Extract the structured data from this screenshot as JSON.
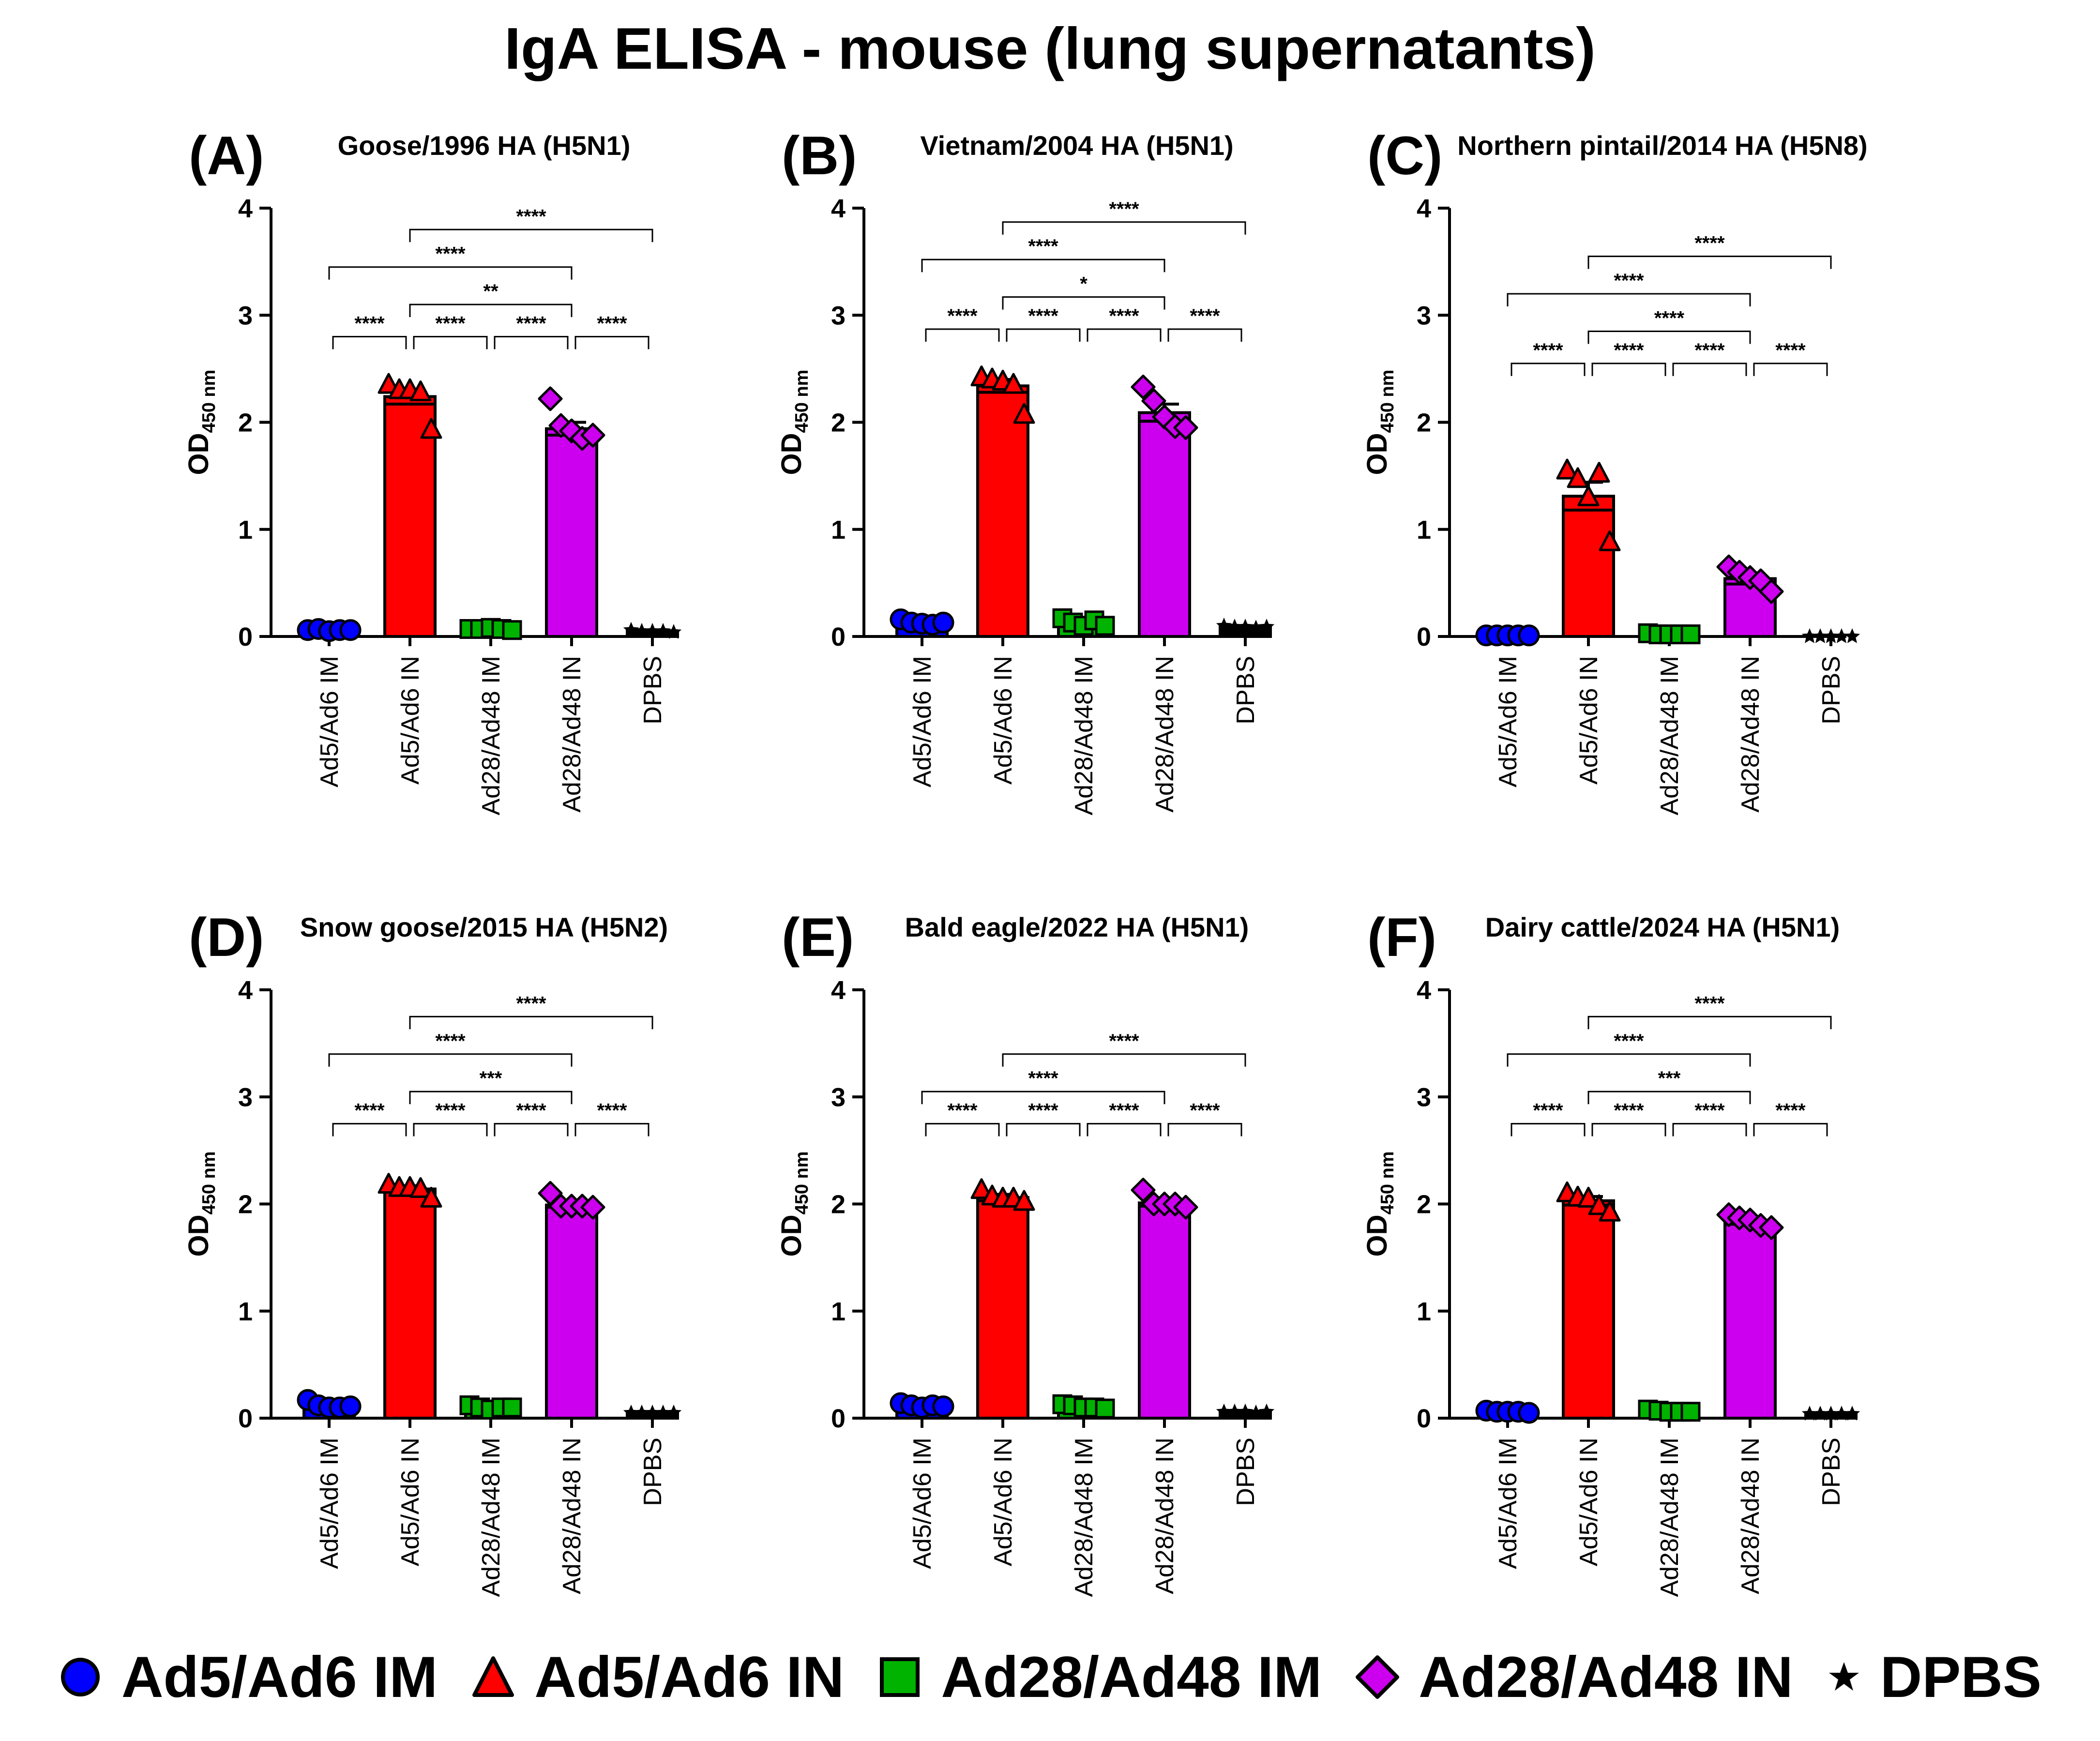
{
  "title": "IgA ELISA - mouse (lung supernatants)",
  "legend": [
    {
      "label": "Ad5/Ad6 IM",
      "marker": "circle",
      "color": "#0000ff"
    },
    {
      "label": "Ad5/Ad6 IN",
      "marker": "triangle",
      "color": "#ff0000"
    },
    {
      "label": "Ad28/Ad48 IM",
      "marker": "square",
      "color": "#00b300"
    },
    {
      "label": "Ad28/Ad48 IN",
      "marker": "diamond",
      "color": "#cc00ee"
    },
    {
      "label": "DPBS",
      "marker": "star",
      "color": "#000000"
    }
  ],
  "chart_data": [
    {
      "type": "bar",
      "panel": "(A)",
      "title": "Goose/1996 HA (H5N1)",
      "ylabel": "OD",
      "ylabel_sub": "450 nm",
      "ylim": [
        0,
        4
      ],
      "yticks": [
        "0",
        "1",
        "2",
        "3",
        "4"
      ],
      "categories": [
        "Ad5/Ad6 IM",
        "Ad5/Ad6 IN",
        "Ad28/Ad48 IM",
        "Ad28/Ad48 IN",
        "DPBS"
      ],
      "values": [
        0.06,
        2.24,
        0.07,
        1.94,
        0.05
      ],
      "sem": [
        0.01,
        0.07,
        0.01,
        0.06,
        0.01
      ],
      "points": [
        [
          0.06,
          0.07,
          0.05,
          0.06,
          0.06
        ],
        [
          2.35,
          2.3,
          2.3,
          2.28,
          1.93
        ],
        [
          0.07,
          0.07,
          0.08,
          0.07,
          0.06
        ],
        [
          2.22,
          1.97,
          1.92,
          1.85,
          1.88
        ],
        [
          0.06,
          0.05,
          0.05,
          0.05,
          0.04
        ]
      ],
      "comparisons": [
        {
          "from": 0,
          "to": 1,
          "label": "****"
        },
        {
          "from": 1,
          "to": 2,
          "label": "****"
        },
        {
          "from": 2,
          "to": 3,
          "label": "****"
        },
        {
          "from": 3,
          "to": 4,
          "label": "****"
        },
        {
          "from": 1,
          "to": 3,
          "label": "**"
        },
        {
          "from": 0,
          "to": 3,
          "label": "****"
        },
        {
          "from": 1,
          "to": 4,
          "label": "****"
        }
      ]
    },
    {
      "type": "bar",
      "panel": "(B)",
      "title": "Vietnam/2004 HA (H5N1)",
      "ylabel": "OD",
      "ylabel_sub": "450 nm",
      "ylim": [
        0,
        4
      ],
      "yticks": [
        "0",
        "1",
        "2",
        "3",
        "4"
      ],
      "categories": [
        "Ad5/Ad6 IM",
        "Ad5/Ad6 IN",
        "Ad28/Ad48 IM",
        "Ad28/Ad48 IN",
        "DPBS"
      ],
      "values": [
        0.13,
        2.34,
        0.13,
        2.09,
        0.09
      ],
      "sem": [
        0.02,
        0.06,
        0.03,
        0.08,
        0.01
      ],
      "points": [
        [
          0.16,
          0.13,
          0.12,
          0.11,
          0.13
        ],
        [
          2.42,
          2.4,
          2.38,
          2.35,
          2.07
        ],
        [
          0.17,
          0.13,
          0.1,
          0.15,
          0.1
        ],
        [
          2.33,
          2.2,
          2.05,
          1.96,
          1.95
        ],
        [
          0.1,
          0.09,
          0.09,
          0.08,
          0.09
        ]
      ],
      "comparisons": [
        {
          "from": 0,
          "to": 1,
          "label": "****"
        },
        {
          "from": 1,
          "to": 2,
          "label": "****"
        },
        {
          "from": 2,
          "to": 3,
          "label": "****"
        },
        {
          "from": 3,
          "to": 4,
          "label": "****"
        },
        {
          "from": 1,
          "to": 3,
          "label": "*"
        },
        {
          "from": 0,
          "to": 3,
          "label": "****"
        },
        {
          "from": 1,
          "to": 4,
          "label": "****"
        }
      ]
    },
    {
      "type": "bar",
      "panel": "(C)",
      "title": "Northern pintail/2014 HA (H5N8)",
      "ylabel": "OD",
      "ylabel_sub": "450 nm",
      "ylim": [
        0,
        4
      ],
      "yticks": [
        "0",
        "1",
        "2",
        "3",
        "4"
      ],
      "categories": [
        "Ad5/Ad6 IM",
        "Ad5/Ad6 IN",
        "Ad28/Ad48 IM",
        "Ad28/Ad48 IN",
        "DPBS"
      ],
      "values": [
        0.01,
        1.31,
        0.02,
        0.54,
        0.0
      ],
      "sem": [
        0.005,
        0.13,
        0.01,
        0.05,
        0.003
      ],
      "points": [
        [
          0.01,
          0.01,
          0.01,
          0.01,
          0.01
        ],
        [
          1.55,
          1.47,
          1.3,
          1.52,
          0.88
        ],
        [
          0.03,
          0.02,
          0.02,
          0.02,
          0.02
        ],
        [
          0.65,
          0.6,
          0.55,
          0.52,
          0.42
        ],
        [
          0.0,
          0.0,
          0.0,
          0.0,
          0.0
        ]
      ],
      "comparisons": [
        {
          "from": 0,
          "to": 1,
          "label": "****"
        },
        {
          "from": 1,
          "to": 2,
          "label": "****"
        },
        {
          "from": 2,
          "to": 3,
          "label": "****"
        },
        {
          "from": 3,
          "to": 4,
          "label": "****"
        },
        {
          "from": 1,
          "to": 3,
          "label": "****"
        },
        {
          "from": 0,
          "to": 3,
          "label": "****"
        },
        {
          "from": 1,
          "to": 4,
          "label": "****"
        }
      ]
    },
    {
      "type": "bar",
      "panel": "(D)",
      "title": "Snow goose/2015 HA (H5N2)",
      "ylabel": "OD",
      "ylabel_sub": "450 nm",
      "ylim": [
        0,
        4
      ],
      "yticks": [
        "0",
        "1",
        "2",
        "3",
        "4"
      ],
      "categories": [
        "Ad5/Ad6 IM",
        "Ad5/Ad6 IN",
        "Ad28/Ad48 IM",
        "Ad28/Ad48 IN",
        "DPBS"
      ],
      "values": [
        0.12,
        2.14,
        0.1,
        1.99,
        0.05
      ],
      "sem": [
        0.02,
        0.03,
        0.02,
        0.02,
        0.005
      ],
      "points": [
        [
          0.17,
          0.12,
          0.1,
          0.1,
          0.11
        ],
        [
          2.18,
          2.15,
          2.15,
          2.14,
          2.05
        ],
        [
          0.12,
          0.1,
          0.08,
          0.1,
          0.1
        ],
        [
          2.1,
          1.98,
          1.98,
          1.98,
          1.97
        ],
        [
          0.05,
          0.05,
          0.05,
          0.05,
          0.05
        ]
      ],
      "comparisons": [
        {
          "from": 0,
          "to": 1,
          "label": "****"
        },
        {
          "from": 1,
          "to": 2,
          "label": "****"
        },
        {
          "from": 2,
          "to": 3,
          "label": "****"
        },
        {
          "from": 3,
          "to": 4,
          "label": "****"
        },
        {
          "from": 1,
          "to": 3,
          "label": "***"
        },
        {
          "from": 0,
          "to": 3,
          "label": "****"
        },
        {
          "from": 1,
          "to": 4,
          "label": "****"
        }
      ]
    },
    {
      "type": "bar",
      "panel": "(E)",
      "title": "Bald eagle/2022 HA (H5N1)",
      "ylabel": "OD",
      "ylabel_sub": "450 nm",
      "ylim": [
        0,
        4
      ],
      "yticks": [
        "0",
        "1",
        "2",
        "3",
        "4"
      ],
      "categories": [
        "Ad5/Ad6 IM",
        "Ad5/Ad6 IN",
        "Ad28/Ad48 IM",
        "Ad28/Ad48 IN",
        "DPBS"
      ],
      "values": [
        0.12,
        2.06,
        0.11,
        2.01,
        0.06
      ],
      "sem": [
        0.01,
        0.03,
        0.01,
        0.03,
        0.005
      ],
      "points": [
        [
          0.14,
          0.12,
          0.1,
          0.12,
          0.11
        ],
        [
          2.13,
          2.07,
          2.05,
          2.05,
          2.02
        ],
        [
          0.13,
          0.12,
          0.1,
          0.1,
          0.09
        ],
        [
          2.13,
          2.0,
          2.0,
          2.0,
          1.97
        ],
        [
          0.06,
          0.06,
          0.06,
          0.05,
          0.06
        ]
      ],
      "comparisons": [
        {
          "from": 0,
          "to": 1,
          "label": "****"
        },
        {
          "from": 1,
          "to": 2,
          "label": "****"
        },
        {
          "from": 2,
          "to": 3,
          "label": "****"
        },
        {
          "from": 3,
          "to": 4,
          "label": "****"
        },
        {
          "from": 0,
          "to": 3,
          "label": "****"
        },
        {
          "from": 1,
          "to": 4,
          "label": "****"
        }
      ]
    },
    {
      "type": "bar",
      "panel": "(F)",
      "title": "Dairy cattle/2024 HA (H5N1)",
      "ylabel": "OD",
      "ylabel_sub": "450 nm",
      "ylim": [
        0,
        4
      ],
      "yticks": [
        "0",
        "1",
        "2",
        "3",
        "4"
      ],
      "categories": [
        "Ad5/Ad6 IM",
        "Ad5/Ad6 IN",
        "Ad28/Ad48 IM",
        "Ad28/Ad48 IN",
        "DPBS"
      ],
      "values": [
        0.06,
        2.03,
        0.07,
        1.84,
        0.04
      ],
      "sem": [
        0.01,
        0.04,
        0.01,
        0.03,
        0.005
      ],
      "points": [
        [
          0.07,
          0.06,
          0.06,
          0.06,
          0.05
        ],
        [
          2.1,
          2.06,
          2.05,
          1.98,
          1.92
        ],
        [
          0.08,
          0.07,
          0.06,
          0.06,
          0.06
        ],
        [
          1.9,
          1.87,
          1.85,
          1.8,
          1.78
        ],
        [
          0.04,
          0.04,
          0.04,
          0.04,
          0.04
        ]
      ],
      "comparisons": [
        {
          "from": 0,
          "to": 1,
          "label": "****"
        },
        {
          "from": 1,
          "to": 2,
          "label": "****"
        },
        {
          "from": 2,
          "to": 3,
          "label": "****"
        },
        {
          "from": 3,
          "to": 4,
          "label": "****"
        },
        {
          "from": 1,
          "to": 3,
          "label": "***"
        },
        {
          "from": 0,
          "to": 3,
          "label": "****"
        },
        {
          "from": 1,
          "to": 4,
          "label": "****"
        }
      ]
    }
  ]
}
